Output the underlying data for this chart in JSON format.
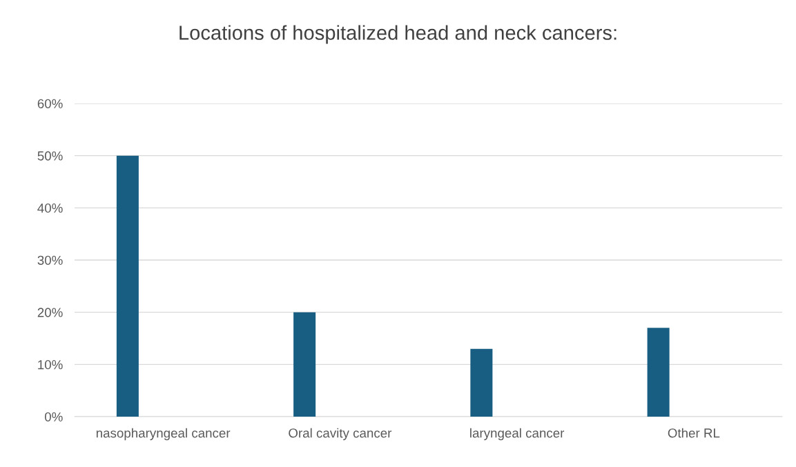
{
  "chart_data": {
    "type": "bar",
    "title": "Locations of hospitalized head and neck cancers:",
    "categories": [
      "nasopharyngeal cancer",
      "Oral cavity cancer",
      "laryngeal cancer",
      "Other RL"
    ],
    "values": [
      50,
      20,
      13,
      17
    ],
    "color": "#175e82",
    "ylim": [
      0,
      60
    ],
    "yticks": [
      {
        "value": 0,
        "label": "0%"
      },
      {
        "value": 10,
        "label": "10%"
      },
      {
        "value": 20,
        "label": "20%"
      },
      {
        "value": 30,
        "label": "30%"
      },
      {
        "value": 40,
        "label": "40%"
      },
      {
        "value": 50,
        "label": "50%"
      },
      {
        "value": 60,
        "label": "60%"
      }
    ],
    "grid": "y",
    "legend": false
  }
}
